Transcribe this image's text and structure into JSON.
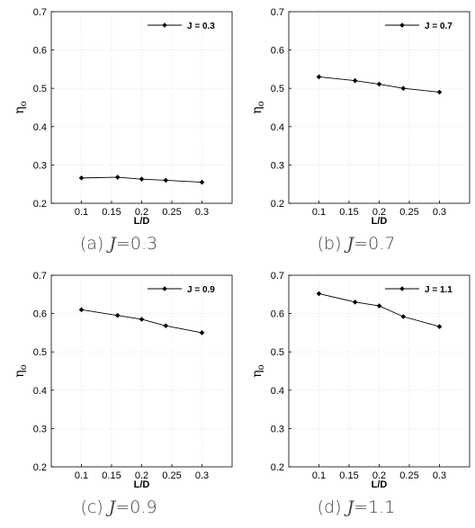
{
  "chart_data": [
    {
      "type": "line",
      "caption_label": "(a)",
      "caption_var": "J",
      "caption_value": "=0.3",
      "xlabel": "L/D",
      "ylabel": "η",
      "ylabel_sub": "o",
      "xlim": [
        0.05,
        0.35
      ],
      "ylim": [
        0.2,
        0.7
      ],
      "xticks": [
        "0.1",
        "0.15",
        "0.2",
        "0.25",
        "0.3"
      ],
      "yticks": [
        "0.2",
        "0.3",
        "0.4",
        "0.5",
        "0.6",
        "0.7"
      ],
      "grid": true,
      "legend_position": "top-right",
      "series": [
        {
          "name": "J = 0.3",
          "x": [
            0.1,
            0.16,
            0.2,
            0.24,
            0.3
          ],
          "y": [
            0.266,
            0.268,
            0.263,
            0.26,
            0.255
          ]
        }
      ]
    },
    {
      "type": "line",
      "caption_label": "(b)",
      "caption_var": "J",
      "caption_value": "=0.7",
      "xlabel": "L/D",
      "ylabel": "η",
      "ylabel_sub": "o",
      "xlim": [
        0.05,
        0.35
      ],
      "ylim": [
        0.2,
        0.7
      ],
      "xticks": [
        "0.1",
        "0.15",
        "0.2",
        "0.25",
        "0.3"
      ],
      "yticks": [
        "0.2",
        "0.3",
        "0.4",
        "0.5",
        "0.6",
        "0.7"
      ],
      "grid": true,
      "legend_position": "top-right",
      "series": [
        {
          "name": "J = 0.7",
          "x": [
            0.1,
            0.16,
            0.2,
            0.24,
            0.3
          ],
          "y": [
            0.53,
            0.52,
            0.511,
            0.5,
            0.49
          ]
        }
      ]
    },
    {
      "type": "line",
      "caption_label": "(c)",
      "caption_var": "J",
      "caption_value": "=0.9",
      "xlabel": "L/D",
      "ylabel": "η",
      "ylabel_sub": "o",
      "xlim": [
        0.05,
        0.35
      ],
      "ylim": [
        0.2,
        0.7
      ],
      "xticks": [
        "0.1",
        "0.15",
        "0.2",
        "0.25",
        "0.3"
      ],
      "yticks": [
        "0.2",
        "0.3",
        "0.4",
        "0.5",
        "0.6",
        "0.7"
      ],
      "grid": true,
      "legend_position": "top-right",
      "series": [
        {
          "name": "J = 0.9",
          "x": [
            0.1,
            0.16,
            0.2,
            0.24,
            0.3
          ],
          "y": [
            0.61,
            0.595,
            0.585,
            0.568,
            0.55
          ]
        }
      ]
    },
    {
      "type": "line",
      "caption_label": "(d)",
      "caption_var": "J",
      "caption_value": "=1.1",
      "xlabel": "L/D",
      "ylabel": "η",
      "ylabel_sub": "o",
      "xlim": [
        0.05,
        0.35
      ],
      "ylim": [
        0.2,
        0.7
      ],
      "xticks": [
        "0.1",
        "0.15",
        "0.2",
        "0.25",
        "0.3"
      ],
      "yticks": [
        "0.2",
        "0.3",
        "0.4",
        "0.5",
        "0.6",
        "0.7"
      ],
      "grid": true,
      "legend_position": "top-right",
      "series": [
        {
          "name": "J = 1.1",
          "x": [
            0.1,
            0.16,
            0.2,
            0.24,
            0.3
          ],
          "y": [
            0.652,
            0.63,
            0.62,
            0.592,
            0.566
          ]
        }
      ]
    }
  ]
}
